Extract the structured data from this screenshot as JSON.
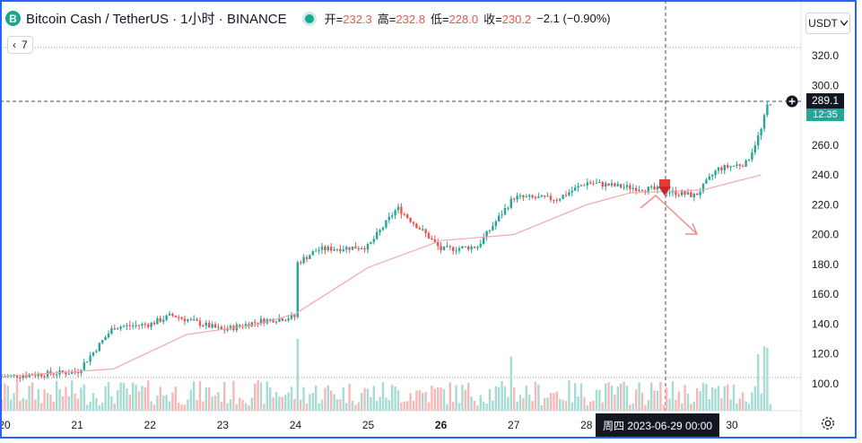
{
  "header": {
    "symbol_icon": "B",
    "title": "Bitcoin Cash / TetherUS · 1小时 · BINANCE",
    "status_icon": "live-dot",
    "ohlc": {
      "open_label": "开=",
      "open": "232.3",
      "high_label": "高=",
      "high": "232.8",
      "low_label": "低=",
      "low": "228.0",
      "close_label": "收=",
      "close": "230.2",
      "change": "−2.1 (−0.90%)"
    }
  },
  "indicator_badge": {
    "chevron": "‹",
    "count": "7"
  },
  "currency_selector": {
    "label": "USDT",
    "icon": "chevron-down-icon"
  },
  "crosshair": {
    "time_label": "周四 2023-06-29   00:00",
    "price_label": "289.1"
  },
  "last_price_tag": {
    "time_to_close": "12:35"
  },
  "colors": {
    "up": "#26a69a",
    "down": "#ef5350",
    "ma": "#f4a9a9",
    "accent": "#2962ff"
  },
  "chart_data": {
    "type": "candlestick",
    "x_ticks": [
      "20",
      "21",
      "22",
      "23",
      "24",
      "25",
      "26",
      "27",
      "28",
      "29",
      "30"
    ],
    "y_ticks": [
      "100.0",
      "120.0",
      "140.0",
      "160.0",
      "180.0",
      "200.0",
      "220.0",
      "240.0",
      "260.0",
      "280.0",
      "300.0",
      "320.0"
    ],
    "ylim": [
      92,
      328
    ],
    "price_series_close_by_day": [
      {
        "day": "20",
        "close": 105
      },
      {
        "day": "21",
        "close": 108
      },
      {
        "day": "21.5",
        "close": 138
      },
      {
        "day": "22",
        "close": 140
      },
      {
        "day": "22.3",
        "close": 146
      },
      {
        "day": "23",
        "close": 136
      },
      {
        "day": "23.5",
        "close": 142
      },
      {
        "day": "24",
        "close": 145
      },
      {
        "day": "24",
        "close": 180
      },
      {
        "day": "24.3",
        "close": 190
      },
      {
        "day": "25",
        "close": 192
      },
      {
        "day": "25.4",
        "close": 218
      },
      {
        "day": "25.8",
        "close": 200
      },
      {
        "day": "26",
        "close": 190
      },
      {
        "day": "26.5",
        "close": 192
      },
      {
        "day": "27",
        "close": 225
      },
      {
        "day": "27.6",
        "close": 224
      },
      {
        "day": "28",
        "close": 235
      },
      {
        "day": "28.5",
        "close": 232
      },
      {
        "day": "29",
        "close": 230
      },
      {
        "day": "29.5",
        "close": 226
      },
      {
        "day": "29.8",
        "close": 244
      },
      {
        "day": "30.2",
        "close": 248
      },
      {
        "day": "30.4",
        "close": 270
      },
      {
        "day": "30.5",
        "close": 289
      }
    ],
    "moving_average": [
      {
        "day": "20",
        "value": 105
      },
      {
        "day": "21.5",
        "value": 110
      },
      {
        "day": "22.5",
        "value": 133
      },
      {
        "day": "23.5",
        "value": 140
      },
      {
        "day": "24",
        "value": 147
      },
      {
        "day": "25",
        "value": 178
      },
      {
        "day": "26",
        "value": 196
      },
      {
        "day": "27",
        "value": 200
      },
      {
        "day": "28",
        "value": 220
      },
      {
        "day": "28.6",
        "value": 228
      },
      {
        "day": "29.6",
        "value": 230
      },
      {
        "day": "30.4",
        "value": 240
      }
    ],
    "volume_note": "",
    "grid": false
  }
}
